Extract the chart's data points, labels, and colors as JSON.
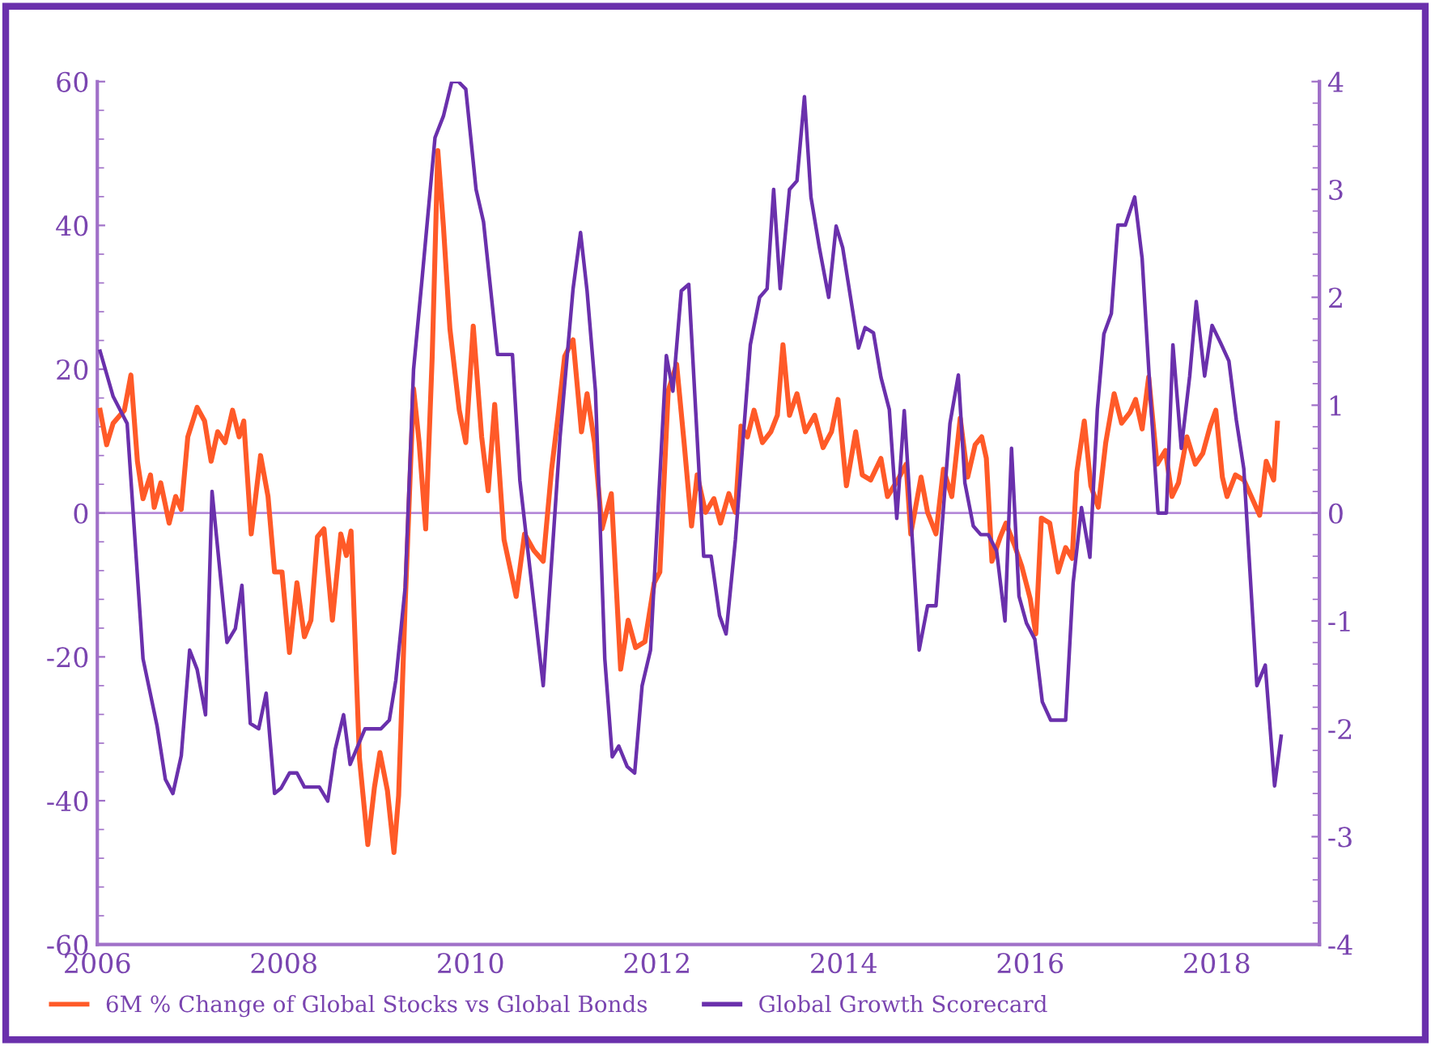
{
  "chart_data": {
    "type": "line",
    "xlim": [
      2006,
      2019.1
    ],
    "xticks": [
      2006,
      2008,
      2010,
      2012,
      2014,
      2016,
      2018
    ],
    "ylim": [
      -60,
      60
    ],
    "yticks": [
      -60,
      -40,
      -20,
      0,
      20,
      40,
      60
    ],
    "y2lim": [
      -4,
      4
    ],
    "y2ticks": [
      -4,
      -3,
      -2,
      -1,
      0,
      1,
      2,
      3,
      4
    ],
    "legend": "bottom",
    "grid": false,
    "marker": "none",
    "line_style": "solid",
    "ref_lines": [
      {
        "axis": "y",
        "value": 0,
        "color": "#b58ad8"
      }
    ],
    "series": [
      {
        "name": "6M % Change of Global Stocks vs Global Bonds",
        "color": "#ff5a28",
        "x": [
          2006.03,
          2006.1,
          2006.17,
          2006.29,
          2006.36,
          2006.43,
          2006.49,
          2006.57,
          2006.61,
          2006.68,
          2006.77,
          2006.84,
          2006.9,
          2006.97,
          2007.07,
          2007.15,
          2007.22,
          2007.29,
          2007.37,
          2007.45,
          2007.52,
          2007.57,
          2007.65,
          2007.75,
          2007.83,
          2007.9,
          2007.98,
          2008.06,
          2008.14,
          2008.22,
          2008.29,
          2008.36,
          2008.43,
          2008.52,
          2008.61,
          2008.67,
          2008.72,
          2008.81,
          2008.9,
          2008.97,
          2009.03,
          2009.11,
          2009.18,
          2009.23,
          2009.3,
          2009.39,
          2009.45,
          2009.52,
          2009.59,
          2009.65,
          2009.71,
          2009.78,
          2009.88,
          2009.95,
          2010.03,
          2010.12,
          2010.19,
          2010.26,
          2010.36,
          2010.49,
          2010.58,
          2010.68,
          2010.78,
          2010.87,
          2010.94,
          2011.01,
          2011.1,
          2011.19,
          2011.25,
          2011.33,
          2011.41,
          2011.51,
          2011.61,
          2011.69,
          2011.77,
          2011.87,
          2011.97,
          2012.03,
          2012.12,
          2012.21,
          2012.29,
          2012.37,
          2012.43,
          2012.52,
          2012.61,
          2012.68,
          2012.77,
          2012.84,
          2012.9,
          2012.97,
          2013.04,
          2013.13,
          2013.22,
          2013.29,
          2013.35,
          2013.42,
          2013.5,
          2013.59,
          2013.69,
          2013.78,
          2013.87,
          2013.94,
          2014.03,
          2014.13,
          2014.2,
          2014.29,
          2014.4,
          2014.47,
          2014.58,
          2014.67,
          2014.72,
          2014.83,
          2014.9,
          2014.99,
          2015.07,
          2015.16,
          2015.25,
          2015.33,
          2015.41,
          2015.48,
          2015.53,
          2015.59,
          2015.68,
          2015.74,
          2015.83,
          2015.91,
          2016.0,
          2016.06,
          2016.12,
          2016.21,
          2016.3,
          2016.38,
          2016.45,
          2016.5,
          2016.58,
          2016.65,
          2016.73,
          2016.81,
          2016.9,
          2016.98,
          2017.07,
          2017.13,
          2017.2,
          2017.27,
          2017.36,
          2017.45,
          2017.52,
          2017.59,
          2017.68,
          2017.77,
          2017.85,
          2017.93,
          2017.99,
          2018.06,
          2018.11,
          2018.2,
          2018.29,
          2018.37,
          2018.46,
          2018.53,
          2018.61,
          2018.65
        ],
        "values": [
          14.3,
          9.5,
          12.5,
          14.3,
          19.2,
          7.2,
          2.0,
          5.3,
          0.8,
          4.2,
          -1.4,
          2.3,
          0.5,
          10.6,
          14.7,
          12.8,
          7.2,
          11.3,
          9.8,
          14.3,
          10.6,
          12.8,
          -2.9,
          8.0,
          2.3,
          -8.2,
          -8.2,
          -19.4,
          -9.7,
          -17.2,
          -14.9,
          -3.3,
          -2.2,
          -14.9,
          -2.9,
          -5.9,
          -2.5,
          -34.1,
          -46.1,
          -38.2,
          -33.3,
          -38.6,
          -47.2,
          -39.3,
          -12.7,
          17.3,
          9.8,
          -2.2,
          21.8,
          50.4,
          39.9,
          25.6,
          14.3,
          9.8,
          26.0,
          10.6,
          3.1,
          15.1,
          -3.7,
          -11.6,
          -2.9,
          -5.2,
          -6.7,
          6.1,
          13.6,
          21.8,
          24.1,
          11.3,
          16.6,
          9.8,
          -2.2,
          2.7,
          -21.7,
          -14.9,
          -18.7,
          -17.9,
          -9.7,
          -8.2,
          17.0,
          20.7,
          9.8,
          -1.8,
          5.3,
          0.1,
          2.0,
          -1.4,
          2.7,
          0.1,
          12.1,
          10.6,
          14.3,
          9.8,
          11.3,
          13.6,
          23.4,
          13.6,
          16.6,
          11.3,
          13.6,
          9.1,
          11.3,
          15.8,
          3.8,
          11.3,
          5.3,
          4.6,
          7.6,
          2.3,
          4.6,
          6.8,
          -2.9,
          5.0,
          0.1,
          -2.9,
          6.1,
          2.3,
          13.2,
          5.0,
          9.5,
          10.6,
          7.6,
          -6.7,
          -3.3,
          -1.4,
          -4.4,
          -7.4,
          -11.9,
          -16.8,
          -0.7,
          -1.4,
          -8.2,
          -4.8,
          -6.3,
          5.7,
          12.8,
          3.8,
          0.8,
          9.8,
          16.6,
          12.5,
          14.0,
          15.8,
          11.7,
          18.9,
          6.8,
          8.7,
          2.3,
          4.2,
          10.6,
          6.8,
          8.3,
          12.1,
          14.3,
          5.0,
          2.3,
          5.3,
          4.6,
          2.3,
          -0.3,
          7.2,
          4.6,
          12.5
        ]
      },
      {
        "name": "Global Growth Scorecard",
        "color": "#6a30ac",
        "axis": "y2",
        "x": [
          2006.03,
          2006.17,
          2006.32,
          2006.49,
          2006.64,
          2006.73,
          2006.81,
          2006.9,
          2006.99,
          2007.07,
          2007.16,
          2007.23,
          2007.39,
          2007.48,
          2007.55,
          2007.64,
          2007.73,
          2007.81,
          2007.9,
          2007.97,
          2008.06,
          2008.14,
          2008.22,
          2008.38,
          2008.47,
          2008.55,
          2008.64,
          2008.71,
          2008.87,
          2009.04,
          2009.13,
          2009.2,
          2009.3,
          2009.39,
          2009.48,
          2009.62,
          2009.71,
          2009.8,
          2009.87,
          2009.95,
          2010.06,
          2010.14,
          2010.29,
          2010.45,
          2010.53,
          2010.78,
          2010.96,
          2011.1,
          2011.18,
          2011.25,
          2011.34,
          2011.44,
          2011.52,
          2011.59,
          2011.68,
          2011.76,
          2011.84,
          2011.93,
          2012.1,
          2012.17,
          2012.26,
          2012.34,
          2012.5,
          2012.58,
          2012.67,
          2012.74,
          2012.84,
          2013.0,
          2013.1,
          2013.18,
          2013.25,
          2013.32,
          2013.42,
          2013.5,
          2013.58,
          2013.65,
          2013.74,
          2013.84,
          2013.92,
          2013.99,
          2014.16,
          2014.23,
          2014.32,
          2014.4,
          2014.49,
          2014.57,
          2014.65,
          2014.81,
          2014.9,
          2014.99,
          2015.14,
          2015.23,
          2015.3,
          2015.39,
          2015.47,
          2015.55,
          2015.64,
          2015.73,
          2015.8,
          2015.88,
          2015.96,
          2016.05,
          2016.13,
          2016.22,
          2016.38,
          2016.46,
          2016.55,
          2016.64,
          2016.72,
          2016.79,
          2016.87,
          2016.94,
          2017.02,
          2017.12,
          2017.2,
          2017.29,
          2017.37,
          2017.46,
          2017.53,
          2017.62,
          2017.71,
          2017.78,
          2017.87,
          2017.95,
          2018.04,
          2018.13,
          2018.21,
          2018.29,
          2018.36,
          2018.43,
          2018.52,
          2018.62,
          2018.69
        ],
        "values": [
          1.5,
          1.08,
          0.83,
          -1.35,
          -1.97,
          -2.47,
          -2.6,
          -2.25,
          -1.27,
          -1.45,
          -1.87,
          0.2,
          -1.2,
          -1.07,
          -0.67,
          -1.95,
          -2.0,
          -1.67,
          -2.6,
          -2.55,
          -2.41,
          -2.41,
          -2.54,
          -2.54,
          -2.67,
          -2.19,
          -1.87,
          -2.33,
          -2.0,
          -2.0,
          -1.92,
          -1.55,
          -0.69,
          1.33,
          2.16,
          3.48,
          3.68,
          4.0,
          4.0,
          3.93,
          3.0,
          2.7,
          1.47,
          1.47,
          0.3,
          -1.6,
          0.7,
          2.08,
          2.6,
          2.06,
          1.13,
          -1.35,
          -2.26,
          -2.16,
          -2.35,
          -2.41,
          -1.6,
          -1.27,
          1.46,
          1.13,
          2.06,
          2.12,
          -0.4,
          -0.4,
          -0.95,
          -1.12,
          -0.25,
          1.56,
          2.0,
          2.08,
          3.0,
          2.08,
          3.0,
          3.08,
          3.86,
          2.93,
          2.46,
          2.0,
          2.66,
          2.46,
          1.53,
          1.72,
          1.67,
          1.26,
          0.96,
          -0.05,
          0.95,
          -1.27,
          -0.86,
          -0.86,
          0.83,
          1.28,
          0.28,
          -0.12,
          -0.2,
          -0.2,
          -0.35,
          -1.0,
          0.6,
          -0.77,
          -1.02,
          -1.17,
          -1.75,
          -1.92,
          -1.92,
          -0.65,
          0.05,
          -0.41,
          0.96,
          1.66,
          1.85,
          2.67,
          2.67,
          2.93,
          2.36,
          1.06,
          0.0,
          0.0,
          1.56,
          0.6,
          1.27,
          1.96,
          1.27,
          1.74,
          1.58,
          1.41,
          0.86,
          0.41,
          -0.6,
          -1.6,
          -1.41,
          -2.53,
          -2.07
        ]
      }
    ]
  }
}
